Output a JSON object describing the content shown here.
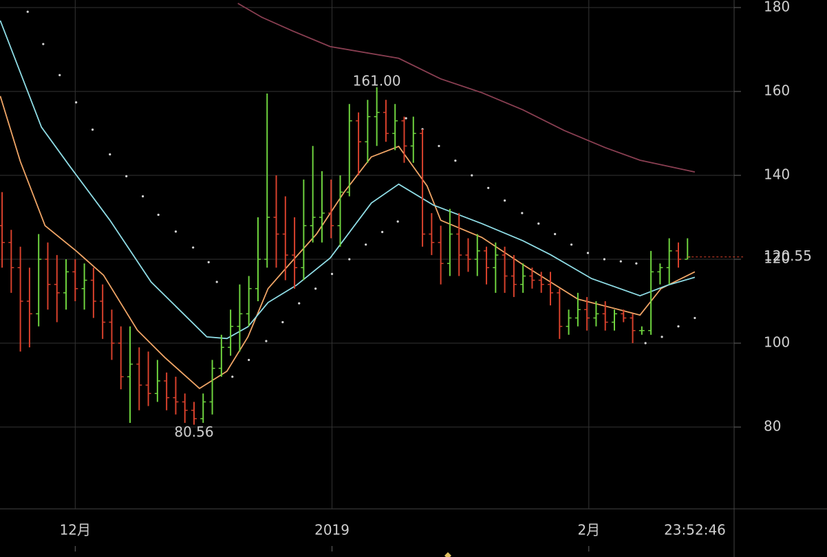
{
  "chart_data": {
    "type": "ohlc",
    "open": [
      128,
      124,
      118,
      110,
      107,
      120,
      114,
      112,
      117,
      113,
      115,
      110,
      105,
      100,
      92,
      95,
      90,
      88,
      91,
      87,
      86,
      84,
      82,
      86,
      94,
      99,
      104,
      107,
      113,
      120,
      130,
      126,
      121,
      118,
      128,
      130,
      131,
      128,
      136,
      153,
      148,
      154,
      155,
      150,
      153,
      147,
      150,
      126,
      124,
      119,
      126,
      121,
      120,
      122,
      118,
      121,
      116,
      114,
      116,
      115,
      114,
      112,
      104,
      106,
      108,
      106,
      107,
      105,
      107,
      106,
      103,
      103,
      117,
      118,
      122,
      120
    ],
    "high": [
      136,
      127,
      123,
      118,
      126,
      124,
      121,
      120,
      120,
      119,
      118,
      114,
      108,
      104,
      104,
      99,
      98,
      96,
      93,
      92,
      88,
      86,
      88,
      96,
      102,
      108,
      114,
      116,
      130,
      159.5,
      140,
      135,
      130,
      139,
      147,
      141,
      139,
      140,
      157,
      155,
      158,
      161,
      158,
      157,
      154,
      154,
      151,
      131,
      128,
      132,
      131,
      125,
      126,
      123,
      124,
      123,
      121,
      119,
      118,
      117,
      117,
      113,
      108,
      112,
      111,
      110,
      110,
      108,
      108,
      107,
      104,
      122,
      119,
      125,
      124,
      125
    ],
    "low": [
      118,
      112,
      98,
      99,
      104,
      108,
      105,
      108,
      110,
      108,
      106,
      101,
      96,
      89,
      81,
      84,
      85,
      86,
      84,
      83,
      81,
      80.56,
      81,
      83,
      92,
      97,
      98,
      104,
      110,
      118,
      118,
      115,
      113,
      115,
      124,
      124,
      125,
      123,
      135,
      140,
      143,
      147,
      148,
      146,
      143,
      143,
      123,
      121,
      114,
      116,
      116,
      117,
      116,
      114,
      112,
      112,
      111,
      112,
      113,
      112,
      109,
      101,
      102,
      104,
      103,
      104,
      103,
      103,
      105,
      100,
      102,
      102,
      114,
      114,
      118,
      120
    ],
    "close": [
      124,
      118,
      110,
      107,
      120,
      114,
      112,
      117,
      113,
      115,
      110,
      105,
      100,
      92,
      95,
      90,
      88,
      91,
      87,
      86,
      84,
      82,
      86,
      94,
      99,
      104,
      107,
      113,
      120,
      130,
      126,
      121,
      118,
      128,
      130,
      131,
      128,
      136,
      153,
      148,
      154,
      155,
      150,
      153,
      147,
      150,
      126,
      124,
      119,
      126,
      121,
      120,
      122,
      118,
      121,
      116,
      114,
      116,
      115,
      114,
      112,
      104,
      106,
      108,
      106,
      107,
      105,
      107,
      106,
      103,
      103,
      117,
      118,
      122,
      120,
      120.55
    ],
    "up_color": "#6fd43f",
    "down_color": "#d8412c",
    "lines": [
      {
        "color": "#f0a566",
        "x": [
          -0.2,
          2.0,
          4.7,
          8.1,
          11.1,
          14.8,
          17.8,
          21.6,
          24.6,
          26.9,
          29.1,
          31.4,
          34.4,
          37.4,
          40.4,
          43.4,
          46.5,
          48.0,
          52.5,
          57.0,
          60.0,
          63.0,
          67.5,
          69.8,
          72.1,
          75.8
        ],
        "values": [
          158.9,
          143.3,
          128,
          122,
          116.2,
          103.1,
          96.6,
          89.2,
          93.3,
          101.5,
          113,
          118.7,
          126,
          135.9,
          144.4,
          146.9,
          137.5,
          129.3,
          125.2,
          118.7,
          114.6,
          110.5,
          108,
          106.7,
          113,
          117
        ]
      },
      {
        "color": "#8fdde6",
        "x": [
          -0.2,
          4.3,
          7.3,
          11.8,
          16.3,
          22.4,
          24.6,
          26.9,
          29.1,
          32.2,
          35.9,
          40.4,
          43.4,
          47.2,
          52.5,
          57.0,
          60.0,
          64.5,
          69.8,
          72.8,
          75.8
        ],
        "values": [
          176.9,
          151.5,
          142.5,
          129.3,
          114.6,
          101.5,
          101.1,
          103.9,
          109.7,
          113.8,
          120.3,
          133.4,
          137.9,
          132.9,
          128.5,
          124.4,
          121.1,
          115.4,
          111.3,
          113.8,
          115.7
        ]
      },
      {
        "color": "#8a3f52",
        "x": [
          25.8,
          28.4,
          31.8,
          35.9,
          43.4,
          48.0,
          52.5,
          57.0,
          61.5,
          66.0,
          69.8,
          75.8
        ],
        "values": [
          181,
          177.7,
          174.4,
          170.7,
          167.9,
          163,
          159.7,
          155.6,
          150.7,
          146.6,
          143.6,
          140.8
        ]
      }
    ],
    "sar": {
      "color": "#d8d8d8",
      "x": [
        2.8,
        4.5,
        6.3,
        8.1,
        9.9,
        11.8,
        13.6,
        15.4,
        17.1,
        19.0,
        20.9,
        22.6,
        23.5,
        25.2,
        27.0,
        28.9,
        30.7,
        32.5,
        34.3,
        36.1,
        38.0,
        39.8,
        41.6,
        43.3,
        44.2,
        46.0,
        47.8,
        49.6,
        51.4,
        53.2,
        55.0,
        56.9,
        58.7,
        60.5,
        62.3,
        64.1,
        65.9,
        67.7,
        69.4,
        70.4,
        72.2,
        74.0,
        75.8
      ],
      "values": [
        179,
        171.3,
        163.9,
        157.4,
        150.9,
        145,
        139.8,
        135,
        130.6,
        126.6,
        122.8,
        119.3,
        114.6,
        92,
        96,
        100.5,
        105,
        109.5,
        113,
        116.5,
        120,
        123.5,
        126.5,
        129,
        153.6,
        151,
        147,
        143.5,
        140,
        137,
        134,
        131,
        128.5,
        126,
        123.5,
        121.5,
        120,
        119.5,
        119,
        100,
        101.5,
        104,
        106
      ]
    },
    "annotations": [
      {
        "text": "161.00",
        "value": 161,
        "x": 41
      },
      {
        "text": "80.56",
        "value": 80.56,
        "x": 21
      }
    ],
    "last_price": {
      "label": "120.55",
      "value": 120.55,
      "color": "#d8412c"
    },
    "time_label": "23:52:46",
    "xlim": [
      -0.23,
      80.1
    ],
    "xticks": [
      {
        "value": 8,
        "label": "12月"
      },
      {
        "value": 36.1,
        "label": "2019"
      },
      {
        "value": 64.2,
        "label": "2月"
      }
    ],
    "ylim": [
      60.5,
      181.8
    ],
    "yticks": [
      80,
      100,
      120,
      140,
      160,
      180
    ],
    "grid": true
  }
}
